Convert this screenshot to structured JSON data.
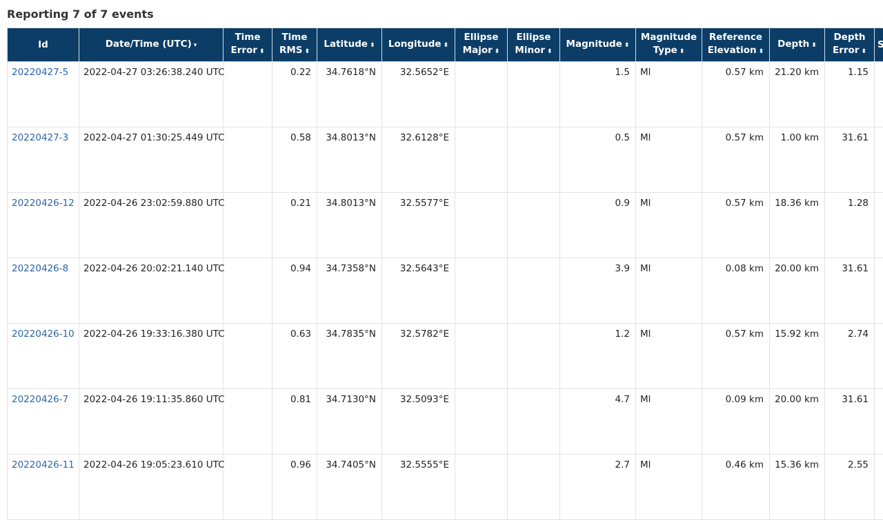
{
  "title": "Reporting 7 of 7 events",
  "columns": [
    {
      "label": "Id",
      "sort": ""
    },
    {
      "label": "Date/Time (UTC)",
      "sort": "▾"
    },
    {
      "label": "Time Error",
      "sort": "⬍"
    },
    {
      "label": "Time RMS",
      "sort": "⬍"
    },
    {
      "label": "Latitude",
      "sort": "⬍"
    },
    {
      "label": "Longitude",
      "sort": "⬍"
    },
    {
      "label": "Ellipse Major",
      "sort": "⬍"
    },
    {
      "label": "Ellipse Minor",
      "sort": "⬍"
    },
    {
      "label": "Magnitude",
      "sort": "⬍"
    },
    {
      "label": "Magnitude Type",
      "sort": "⬍"
    },
    {
      "label": "Reference Elevation",
      "sort": "⬍"
    },
    {
      "label": "Depth",
      "sort": "⬍"
    },
    {
      "label": "Depth Error",
      "sort": "⬍"
    },
    {
      "label": "S",
      "sort": ""
    }
  ],
  "rows": [
    [
      "20220427-5",
      "2022-04-27 03:26:38.240 UTC",
      "",
      "0.22",
      "34.7618°N",
      "32.5652°E",
      "",
      "",
      "1.5",
      "Ml",
      "0.57 km",
      "21.20 km",
      "1.15"
    ],
    [
      "20220427-3",
      "2022-04-27 01:30:25.449 UTC",
      "",
      "0.58",
      "34.8013°N",
      "32.6128°E",
      "",
      "",
      "0.5",
      "Ml",
      "0.57 km",
      "1.00 km",
      "31.61"
    ],
    [
      "20220426-12",
      "2022-04-26 23:02:59.880 UTC",
      "",
      "0.21",
      "34.8013°N",
      "32.5577°E",
      "",
      "",
      "0.9",
      "Ml",
      "0.57 km",
      "18.36 km",
      "1.28"
    ],
    [
      "20220426-8",
      "2022-04-26 20:02:21.140 UTC",
      "",
      "0.94",
      "34.7358°N",
      "32.5643°E",
      "",
      "",
      "3.9",
      "Ml",
      "0.08 km",
      "20.00 km",
      "31.61"
    ],
    [
      "20220426-10",
      "2022-04-26 19:33:16.380 UTC",
      "",
      "0.63",
      "34.7835°N",
      "32.5782°E",
      "",
      "",
      "1.2",
      "Ml",
      "0.57 km",
      "15.92 km",
      "2.74"
    ],
    [
      "20220426-7",
      "2022-04-26 19:11:35.860 UTC",
      "",
      "0.81",
      "34.7130°N",
      "32.5093°E",
      "",
      "",
      "4.7",
      "Ml",
      "0.09 km",
      "20.00 km",
      "31.61"
    ],
    [
      "20220426-11",
      "2022-04-26 19:05:23.610 UTC",
      "",
      "0.96",
      "34.7405°N",
      "32.5555°E",
      "",
      "",
      "2.7",
      "Ml",
      "0.46 km",
      "15.36 km",
      "2.55"
    ]
  ]
}
